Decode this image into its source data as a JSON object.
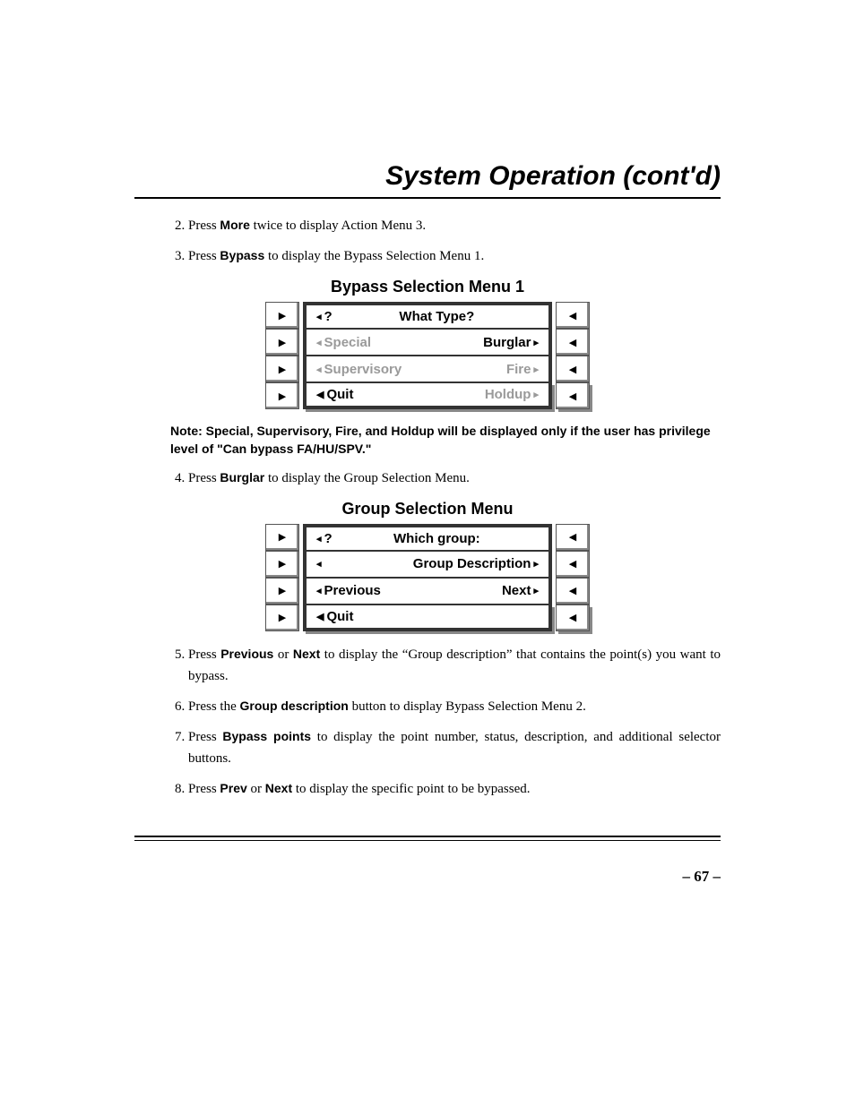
{
  "header": {
    "title": "System Operation (cont'd)"
  },
  "steps_a": [
    {
      "n": 2,
      "pre": "Press ",
      "bold": "More",
      "post": " twice to display Action Menu 3."
    },
    {
      "n": 3,
      "pre": "Press ",
      "bold": "Bypass",
      "post": " to display the Bypass Selection Menu 1."
    }
  ],
  "bypass_menu": {
    "title": "Bypass Selection Menu 1",
    "rows": [
      {
        "left_arrow": "◂",
        "left_text": "?",
        "left_grey": false,
        "right_text": "What Type?",
        "right_arrow": "",
        "right_grey": false,
        "center": true
      },
      {
        "left_arrow": "◂",
        "left_text": "Special",
        "left_grey": true,
        "right_text": "Burglar",
        "right_arrow": "▸",
        "right_grey": false
      },
      {
        "left_arrow": "◂",
        "left_text": "Supervisory",
        "left_grey": true,
        "right_text": "Fire",
        "right_arrow": "▸",
        "right_grey": true
      },
      {
        "left_arrow": "◂",
        "left_text": "Quit",
        "left_grey": false,
        "right_text": "Holdup",
        "right_arrow": "▸",
        "right_grey": true,
        "left_solid_arrow": true
      }
    ]
  },
  "note": "Note: Special, Supervisory, Fire, and Holdup will be displayed only if the user has privilege level of \"Can bypass FA/HU/SPV.\"",
  "steps_b": [
    {
      "n": 4,
      "pre": "Press ",
      "bold": "Burglar",
      "post": " to display the Group Selection Menu."
    }
  ],
  "group_menu": {
    "title": "Group Selection Menu",
    "rows": [
      {
        "left_arrow": "◂",
        "left_text": "?",
        "left_grey": false,
        "right_text": "Which group:",
        "right_arrow": "",
        "right_grey": false,
        "center": true
      },
      {
        "left_arrow": "◂",
        "left_text": "",
        "left_grey": false,
        "right_text": "Group Description",
        "right_arrow": "▸",
        "right_grey": false
      },
      {
        "left_arrow": "◂",
        "left_text": "Previous",
        "left_grey": false,
        "right_text": "Next",
        "right_arrow": "▸",
        "right_grey": false
      },
      {
        "left_arrow": "◂",
        "left_text": "Quit",
        "left_grey": false,
        "right_text": "",
        "right_arrow": "",
        "right_grey": false,
        "left_solid_arrow": true
      }
    ]
  },
  "steps_c": [
    {
      "n": 5,
      "pre": "Press ",
      "bold": "Previous",
      "mid": " or ",
      "bold2": "Next",
      "post": " to display the “Group description” that contains the point(s) you want to bypass."
    },
    {
      "n": 6,
      "pre": "Press the ",
      "bold": "Group description",
      "post": " button to display Bypass Selection Menu 2."
    },
    {
      "n": 7,
      "pre": "Press ",
      "bold": "Bypass points",
      "post": " to display the point number, status, description, and additional selector buttons."
    },
    {
      "n": 8,
      "pre": "Press ",
      "bold": "Prev",
      "mid": " or ",
      "bold2": "Next",
      "post": " to display the specific point to be bypassed."
    }
  ],
  "page_number": "67",
  "arrow_right_btn": "▶",
  "arrow_left_btn": "◀"
}
